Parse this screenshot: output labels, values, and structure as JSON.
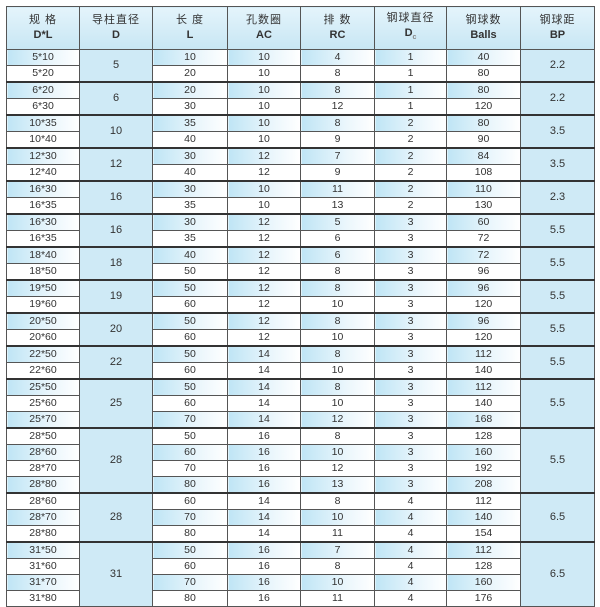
{
  "headers": [
    {
      "cn": "规 格",
      "en": "D*L"
    },
    {
      "cn": "导柱直径",
      "en": "D"
    },
    {
      "cn": "长 度",
      "en": "L"
    },
    {
      "cn": "孔数圈",
      "en": "AC"
    },
    {
      "cn": "排 数",
      "en": "RC"
    },
    {
      "cn": "钢球直径",
      "en": "D",
      "sub": "c"
    },
    {
      "cn": "钢球数",
      "en": "Balls"
    },
    {
      "cn": "钢球距",
      "en": "BP"
    }
  ],
  "colors": {
    "header_bg": "#c7e6f4",
    "merged_bg": "#cfeaf6",
    "stripe": "#bfe5f5",
    "border": "#555555"
  },
  "groups": [
    {
      "D": "5",
      "BP": "2.2",
      "rows": [
        [
          "5*10",
          "10",
          "10",
          "4",
          "1",
          "40"
        ],
        [
          "5*20",
          "20",
          "10",
          "8",
          "1",
          "80"
        ]
      ]
    },
    {
      "D": "6",
      "BP": "2.2",
      "rows": [
        [
          "6*20",
          "20",
          "10",
          "8",
          "1",
          "80"
        ],
        [
          "6*30",
          "30",
          "10",
          "12",
          "1",
          "120"
        ]
      ]
    },
    {
      "D": "10",
      "BP": "3.5",
      "rows": [
        [
          "10*35",
          "35",
          "10",
          "8",
          "2",
          "80"
        ],
        [
          "10*40",
          "40",
          "10",
          "9",
          "2",
          "90"
        ]
      ]
    },
    {
      "D": "12",
      "BP": "3.5",
      "rows": [
        [
          "12*30",
          "30",
          "12",
          "7",
          "2",
          "84"
        ],
        [
          "12*40",
          "40",
          "12",
          "9",
          "2",
          "108"
        ]
      ]
    },
    {
      "D": "16",
      "BP": "2.3",
      "rows": [
        [
          "16*30",
          "30",
          "10",
          "11",
          "2",
          "110"
        ],
        [
          "16*35",
          "35",
          "10",
          "13",
          "2",
          "130"
        ]
      ]
    },
    {
      "D": "16",
      "BP": "5.5",
      "rows": [
        [
          "16*30",
          "30",
          "12",
          "5",
          "3",
          "60"
        ],
        [
          "16*35",
          "35",
          "12",
          "6",
          "3",
          "72"
        ]
      ]
    },
    {
      "D": "18",
      "BP": "5.5",
      "rows": [
        [
          "18*40",
          "40",
          "12",
          "6",
          "3",
          "72"
        ],
        [
          "18*50",
          "50",
          "12",
          "8",
          "3",
          "96"
        ]
      ]
    },
    {
      "D": "19",
      "BP": "5.5",
      "rows": [
        [
          "19*50",
          "50",
          "12",
          "8",
          "3",
          "96"
        ],
        [
          "19*60",
          "60",
          "12",
          "10",
          "3",
          "120"
        ]
      ]
    },
    {
      "D": "20",
      "BP": "5.5",
      "rows": [
        [
          "20*50",
          "50",
          "12",
          "8",
          "3",
          "96"
        ],
        [
          "20*60",
          "60",
          "12",
          "10",
          "3",
          "120"
        ]
      ]
    },
    {
      "D": "22",
      "BP": "5.5",
      "rows": [
        [
          "22*50",
          "50",
          "14",
          "8",
          "3",
          "112"
        ],
        [
          "22*60",
          "60",
          "14",
          "10",
          "3",
          "140"
        ]
      ]
    },
    {
      "D": "25",
      "BP": "5.5",
      "rows": [
        [
          "25*50",
          "50",
          "14",
          "8",
          "3",
          "112"
        ],
        [
          "25*60",
          "60",
          "14",
          "10",
          "3",
          "140"
        ],
        [
          "25*70",
          "70",
          "14",
          "12",
          "3",
          "168"
        ]
      ]
    },
    {
      "D": "28",
      "BP": "5.5",
      "rows": [
        [
          "28*50",
          "50",
          "16",
          "8",
          "3",
          "128"
        ],
        [
          "28*60",
          "60",
          "16",
          "10",
          "3",
          "160"
        ],
        [
          "28*70",
          "70",
          "16",
          "12",
          "3",
          "192"
        ],
        [
          "28*80",
          "80",
          "16",
          "13",
          "3",
          "208"
        ]
      ]
    },
    {
      "D": "28",
      "BP": "6.5",
      "rows": [
        [
          "28*60",
          "60",
          "14",
          "8",
          "4",
          "112"
        ],
        [
          "28*70",
          "70",
          "14",
          "10",
          "4",
          "140"
        ],
        [
          "28*80",
          "80",
          "14",
          "11",
          "4",
          "154"
        ]
      ]
    },
    {
      "D": "31",
      "BP": "6.5",
      "rows": [
        [
          "31*50",
          "50",
          "16",
          "7",
          "4",
          "112"
        ],
        [
          "31*60",
          "60",
          "16",
          "8",
          "4",
          "128"
        ],
        [
          "31*70",
          "70",
          "16",
          "10",
          "4",
          "160"
        ],
        [
          "31*80",
          "80",
          "16",
          "11",
          "4",
          "176"
        ]
      ]
    }
  ]
}
